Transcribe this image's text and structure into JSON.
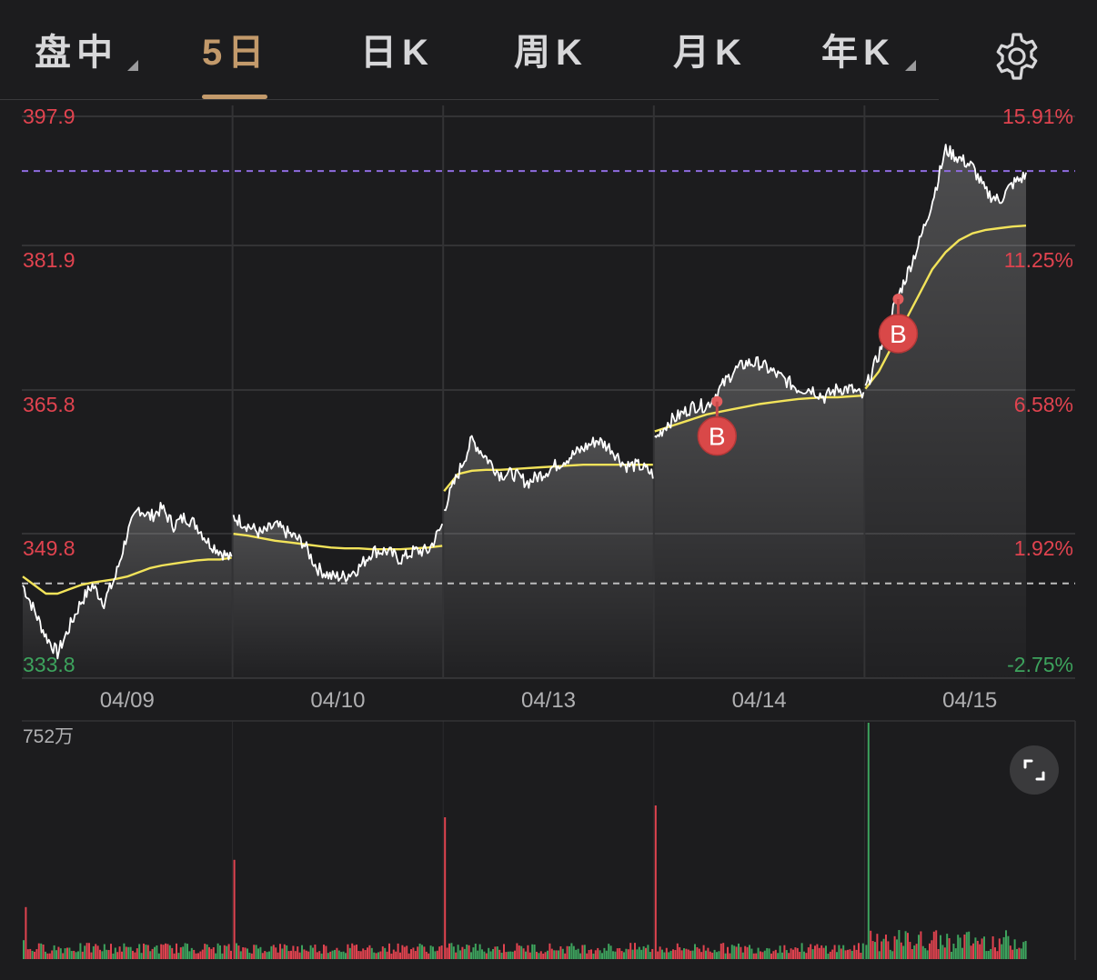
{
  "tabs": [
    {
      "label": "盘中",
      "active": false,
      "dropdown": true
    },
    {
      "label": "5日",
      "active": true,
      "dropdown": false
    },
    {
      "label": "日K",
      "active": false,
      "dropdown": false
    },
    {
      "label": "周K",
      "active": false,
      "dropdown": false
    },
    {
      "label": "月K",
      "active": false,
      "dropdown": false
    },
    {
      "label": "年K",
      "active": false,
      "dropdown": true
    }
  ],
  "icons": {
    "settings": "gear-icon",
    "fullscreen": "expand-icon"
  },
  "colors": {
    "background": "#1c1c1e",
    "up": "#e0434f",
    "down": "#3da35d",
    "price_line": "#ffffff",
    "avg_line": "#f2e35a",
    "ref_line_high": "#8f6ce0",
    "ref_line_base": "#bdbdbd",
    "active_tab": "#c39a6b"
  },
  "chart_data": {
    "type": "line",
    "y_left_labels": [
      "397.9",
      "381.9",
      "365.8",
      "349.8",
      "333.8"
    ],
    "y_right_labels": [
      "15.91%",
      "11.25%",
      "6.58%",
      "1.92%",
      "-2.75%"
    ],
    "ylim": [
      333.8,
      397.9
    ],
    "base_price": 343.2,
    "high_ref_price": 391.5,
    "days": [
      "04/09",
      "04/10",
      "04/13",
      "04/14",
      "04/15"
    ],
    "series": [
      {
        "values": [
          [
            343,
            340,
            337,
            335,
            338,
            341,
            343,
            341,
            344,
            349,
            352,
            351,
            352,
            350,
            351,
            350,
            348,
            347,
            346
          ],
          [
            351,
            350,
            349,
            350,
            349,
            348,
            345,
            344,
            344,
            345,
            347,
            347,
            346,
            347,
            347,
            350
          ],
          [
            352,
            356,
            360,
            358,
            356,
            356,
            355,
            356,
            357,
            358,
            359,
            360,
            359,
            357,
            357,
            356
          ],
          [
            360,
            362,
            363,
            364,
            364,
            366,
            368,
            369,
            369,
            368,
            367,
            366,
            366,
            365,
            366,
            366,
            365
          ],
          [
            366,
            370,
            375,
            379,
            383,
            388,
            394,
            393,
            392,
            389,
            388,
            390,
            391
          ]
        ]
      },
      {
        "values": [
          [
            344,
            343,
            342,
            342,
            342.5,
            343,
            343.3,
            343.5,
            343.7,
            344,
            344.5,
            345,
            345.3,
            345.5,
            345.7,
            345.9,
            346,
            346,
            346.2
          ],
          [
            349,
            348.8,
            348.5,
            348.2,
            348,
            347.8,
            347.6,
            347.4,
            347.3,
            347.3,
            347.2,
            347.2,
            347.2,
            347.3,
            347.4,
            347.6
          ],
          [
            354,
            356,
            356.4,
            356.5,
            356.5,
            356.6,
            356.7,
            356.8,
            356.9,
            357,
            357.1,
            357.1,
            357.1,
            357.1,
            357.1,
            357.1
          ],
          [
            361,
            361.5,
            362,
            362.5,
            363,
            363.3,
            363.6,
            363.9,
            364.2,
            364.4,
            364.6,
            364.8,
            364.9,
            365,
            365,
            365.1,
            365.2
          ],
          [
            366,
            368,
            371,
            374,
            377,
            380,
            382,
            383.4,
            384.2,
            384.6,
            384.8,
            385,
            385.1
          ]
        ]
      }
    ],
    "trades": [
      {
        "day": 3,
        "price": 364.5,
        "label": "B"
      },
      {
        "day": 4,
        "price": 376.5,
        "label": "B"
      }
    ],
    "volume_max_label": "752万",
    "volume": {
      "spike_values": [
        [
          0.08,
          0.22
        ],
        [
          0.42
        ],
        [
          0.6
        ],
        [
          0.65
        ],
        [
          0.06,
          1.0,
          0.12,
          0.1
        ]
      ]
    }
  }
}
